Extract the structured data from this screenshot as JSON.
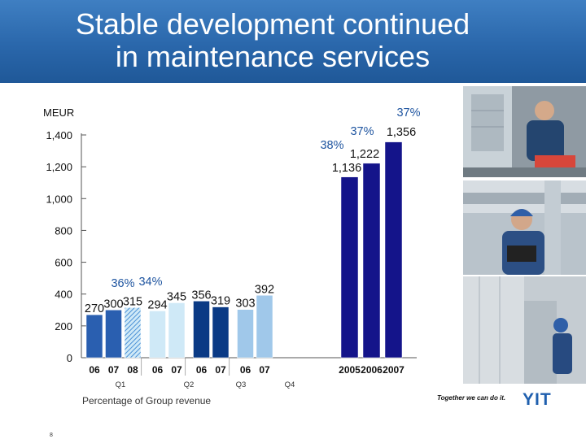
{
  "slide": {
    "title": "Stable development continued\nin maintenance services",
    "unit": "MEUR",
    "footnote": "Percentage of Group revenue",
    "page_number": "8",
    "slogan": "Together we can do it.",
    "logo_text": "YIT"
  },
  "colors": {
    "header": "#2a67ab",
    "q1": "#2a5fb0",
    "q1_hatch": "#6fb6e8",
    "q2": "#cfe9f7",
    "q3": "#0a3a85",
    "q4": "#a0c8ea",
    "annual": "#14148a",
    "pct_text": "#1f55a0"
  },
  "chart_data": {
    "type": "bar",
    "ylim": [
      0,
      1400
    ],
    "yticks": [
      0,
      200,
      400,
      600,
      800,
      1000,
      1200,
      1400
    ],
    "ytick_labels": [
      "0",
      "200",
      "400",
      "600",
      "800",
      "1,000",
      "1,200",
      "1,400"
    ],
    "quarterly": [
      {
        "group": "Q1",
        "bars": [
          {
            "x": "06",
            "value": 270,
            "label": "270",
            "style": "q1"
          },
          {
            "x": "07",
            "value": 300,
            "label": "300",
            "style": "q1"
          },
          {
            "x": "08",
            "value": 315,
            "label": "315",
            "style": "q1_hatch"
          }
        ]
      },
      {
        "group": "Q2",
        "bars": [
          {
            "x": "06",
            "value": 294,
            "label": "294",
            "style": "q2"
          },
          {
            "x": "07",
            "value": 345,
            "label": "345",
            "style": "q2"
          }
        ]
      },
      {
        "group": "Q3",
        "bars": [
          {
            "x": "06",
            "value": 356,
            "label": "356",
            "style": "q3"
          },
          {
            "x": "07",
            "value": 319,
            "label": "319",
            "style": "q3"
          }
        ]
      },
      {
        "group": "Q4",
        "bars": [
          {
            "x": "06",
            "value": 303,
            "label": "303",
            "style": "q4"
          },
          {
            "x": "07",
            "value": 392,
            "label": "392",
            "style": "q4"
          }
        ]
      }
    ],
    "annual": [
      {
        "x": "2005",
        "value": 1136,
        "label": "1,136"
      },
      {
        "x": "2006",
        "value": 1222,
        "label": "1,222"
      },
      {
        "x": "2007",
        "value": 1356,
        "label": "1,356"
      }
    ],
    "percentages": [
      {
        "label": "36%",
        "for": "Q1 06"
      },
      {
        "label": "34%",
        "for": "Q1 07"
      },
      {
        "label": "38%",
        "for": "2005"
      },
      {
        "label": "37%",
        "for": "2006"
      },
      {
        "label": "37%",
        "for": "2007"
      }
    ]
  }
}
